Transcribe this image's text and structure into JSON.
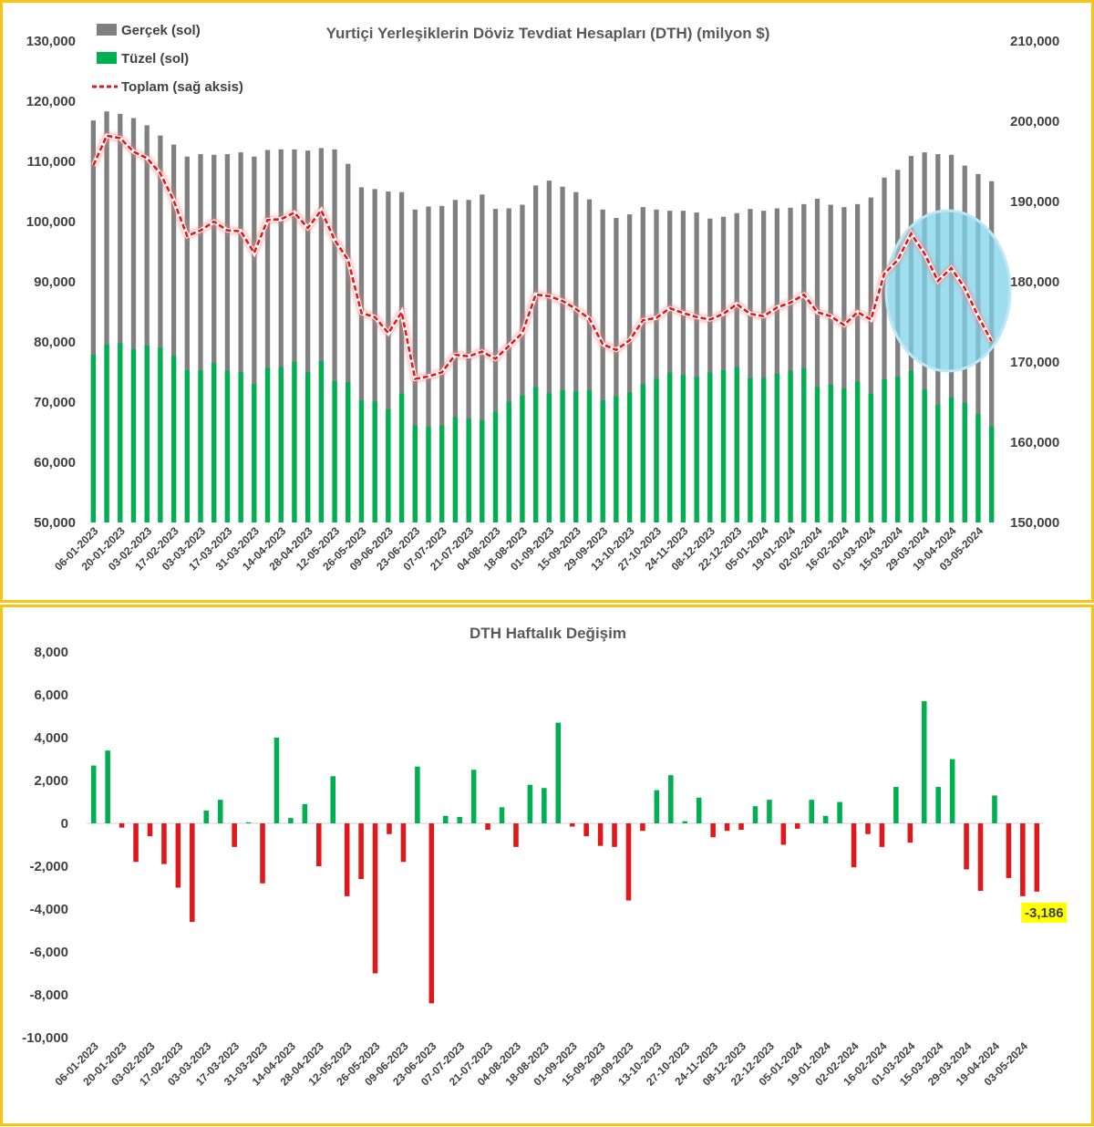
{
  "chart_data": [
    {
      "type": "bar",
      "title": "Yurtiçi Yerleşiklerin Döviz Tevdiat Hesapları (DTH) (milyon $)",
      "y_left_ticks": [
        "50,000",
        "60,000",
        "70,000",
        "80,000",
        "90,000",
        "100,000",
        "110,000",
        "120,000",
        "130,000"
      ],
      "y_right_ticks": [
        "150,000",
        "160,000",
        "170,000",
        "180,000",
        "190,000",
        "200,000",
        "210,000"
      ],
      "ylim_left": [
        50000,
        130000
      ],
      "ylim_right": [
        150000,
        210000
      ],
      "x_tick_labels": [
        "06-01-2023",
        "20-01-2023",
        "03-02-2023",
        "17-02-2023",
        "03-03-2023",
        "17-03-2023",
        "31-03-2023",
        "14-04-2023",
        "28-04-2023",
        "12-05-2023",
        "26-05-2023",
        "09-06-2023",
        "23-06-2023",
        "07-07-2023",
        "21-07-2023",
        "04-08-2023",
        "18-08-2023",
        "01-09-2023",
        "15-09-2023",
        "29-09-2023",
        "13-10-2023",
        "27-10-2023",
        "24-11-2023",
        "08-12-2023",
        "22-12-2023",
        "05-01-2024",
        "19-01-2024",
        "02-02-2024",
        "16-02-2024",
        "01-03-2024",
        "15-03-2024",
        "29-03-2024",
        "19-04-2024",
        "03-05-2024"
      ],
      "legend_position": "top-left",
      "series": [
        {
          "name": "Gerçek (sol)",
          "color": "#808080",
          "axis": "left",
          "type": "bar",
          "values": [
            116800,
            118300,
            117900,
            117200,
            116000,
            114300,
            112800,
            110800,
            111200,
            111100,
            111200,
            111500,
            110800,
            111900,
            112000,
            112000,
            111800,
            112200,
            112000,
            109600,
            105700,
            105400,
            105000,
            104900,
            102000,
            102500,
            102600,
            103600,
            103600,
            104500,
            102100,
            102200,
            102800,
            106000,
            106800,
            105800,
            104900,
            103700,
            102000,
            100600,
            101200,
            102400,
            102000,
            101800,
            101800,
            101500,
            100500,
            100800,
            101400,
            102100,
            101800,
            102200,
            102300,
            102900,
            103800,
            102800,
            102400,
            102900,
            104000,
            107300,
            108600,
            110900,
            111500,
            111200,
            111100,
            109300,
            107900,
            106700
          ]
        },
        {
          "name": "Tüzel (sol)",
          "color": "#00b050",
          "axis": "left",
          "type": "bar",
          "values": [
            77900,
            79600,
            79800,
            78800,
            79400,
            79100,
            77700,
            75300,
            75300,
            76500,
            75200,
            75000,
            73000,
            75700,
            75800,
            76700,
            75000,
            76800,
            73500,
            73300,
            70300,
            70100,
            68800,
            71400,
            66100,
            65900,
            66100,
            67500,
            67200,
            67000,
            68400,
            70100,
            71100,
            72500,
            71500,
            72000,
            71800,
            71900,
            70300,
            71000,
            71600,
            73000,
            73900,
            74900,
            74500,
            74200,
            74900,
            75300,
            75800,
            74000,
            74000,
            74700,
            75200,
            75600,
            72500,
            72900,
            72300,
            73400,
            71400,
            73800,
            74200,
            75200,
            72100,
            69500,
            70800,
            69900,
            68000,
            66000
          ]
        },
        {
          "name": "Toplam (sağ aksis)",
          "color": "#e0181c",
          "axis": "right",
          "type": "line",
          "values": [
            194500,
            198200,
            197900,
            196200,
            195400,
            193500,
            190100,
            185700,
            186400,
            187500,
            186400,
            186300,
            183600,
            187700,
            187800,
            188600,
            186700,
            188900,
            185200,
            182700,
            176100,
            175600,
            173600,
            176200,
            167900,
            168200,
            168700,
            170900,
            170700,
            171300,
            170400,
            172000,
            173600,
            178400,
            178200,
            177600,
            176600,
            175400,
            172200,
            171500,
            172700,
            175200,
            175500,
            176700,
            176100,
            175600,
            175300,
            176000,
            177200,
            176000,
            175700,
            176800,
            177400,
            178400,
            176200,
            175700,
            174600,
            176200,
            175300,
            181000,
            182700,
            186000,
            183500,
            180100,
            181700,
            179200,
            175700,
            172600
          ]
        }
      ]
    },
    {
      "type": "bar",
      "title": "DTH Haftalık Değişim",
      "y_ticks": [
        "8,000",
        "6,000",
        "4,000",
        "2,000",
        "0",
        "-2,000",
        "-4,000",
        "-6,000",
        "-8,000",
        "-10,000"
      ],
      "ylim": [
        -10000,
        8000
      ],
      "x_tick_labels": [
        "06-01-2023",
        "20-01-2023",
        "03-02-2023",
        "17-02-2023",
        "03-03-2023",
        "17-03-2023",
        "31-03-2023",
        "14-04-2023",
        "28-04-2023",
        "12-05-2023",
        "26-05-2023",
        "09-06-2023",
        "23-06-2023",
        "07-07-2023",
        "21-07-2023",
        "04-08-2023",
        "18-08-2023",
        "01-09-2023",
        "15-09-2023",
        "29-09-2023",
        "13-10-2023",
        "27-10-2023",
        "24-11-2023",
        "08-12-2023",
        "22-12-2023",
        "05-01-2024",
        "19-01-2024",
        "02-02-2024",
        "16-02-2024",
        "01-03-2024",
        "15-03-2024",
        "29-03-2024",
        "19-04-2024",
        "03-05-2024"
      ],
      "positive_color": "#00b050",
      "negative_color": "#e0181c",
      "values": [
        2700,
        3400,
        -200,
        -1800,
        -600,
        -1900,
        -3000,
        -4600,
        600,
        1100,
        -1100,
        50,
        -2800,
        4000,
        250,
        900,
        -2000,
        2200,
        -3400,
        -2600,
        -7000,
        -500,
        -1800,
        2650,
        -8400,
        350,
        300,
        2500,
        -300,
        750,
        -1100,
        1800,
        1650,
        4700,
        -150,
        -600,
        -1050,
        -1100,
        -3600,
        -350,
        1550,
        2250,
        100,
        1200,
        -650,
        -350,
        -300,
        800,
        1100,
        -1000,
        -250,
        1100,
        350,
        1000,
        -2050,
        -500,
        -1100,
        1700,
        -900,
        5700,
        1700,
        3000,
        -2150,
        -3150,
        1300,
        -2550,
        -3400,
        -3186
      ],
      "last_value_label": "-3,186"
    }
  ]
}
